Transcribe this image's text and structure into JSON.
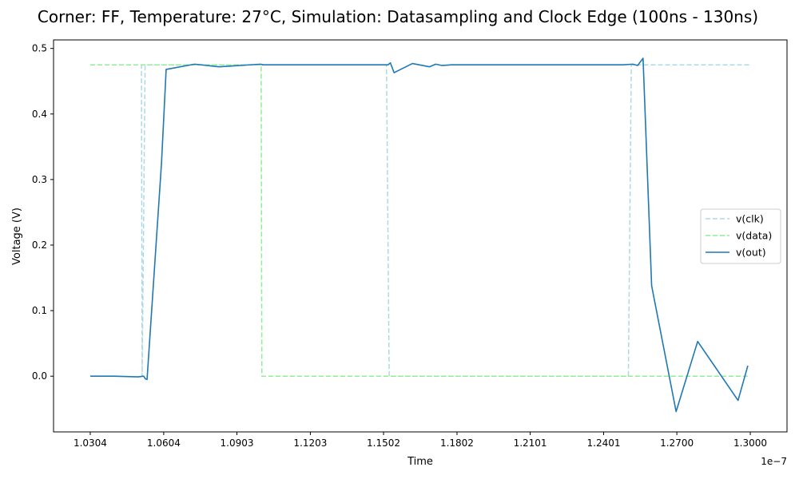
{
  "chart_data": {
    "type": "line",
    "title": "Corner: FF, Temperature: 27°C, Simulation: Datasampling and Clock Edge (100ns - 130ns)",
    "xlabel": "Time",
    "ylabel": "Voltage (V)",
    "x_offset_label": "1e−7",
    "xlim": [
      1.0154,
      1.315
    ],
    "ylim": [
      -0.085,
      0.513
    ],
    "grid": false,
    "legend_position": "center-right",
    "x_ticks": [
      {
        "value": 1.0304,
        "label": "1.0304"
      },
      {
        "value": 1.0604,
        "label": "1.0604"
      },
      {
        "value": 1.0903,
        "label": "1.0903"
      },
      {
        "value": 1.1203,
        "label": "1.1203"
      },
      {
        "value": 1.1502,
        "label": "1.1502"
      },
      {
        "value": 1.1802,
        "label": "1.1802"
      },
      {
        "value": 1.2101,
        "label": "1.2101"
      },
      {
        "value": 1.2401,
        "label": "1.2401"
      },
      {
        "value": 1.27,
        "label": "1.2700"
      },
      {
        "value": 1.3,
        "label": "1.3000"
      }
    ],
    "y_ticks": [
      {
        "value": 0.0,
        "label": "0.0"
      },
      {
        "value": 0.1,
        "label": "0.1"
      },
      {
        "value": 0.2,
        "label": "0.2"
      },
      {
        "value": 0.3,
        "label": "0.3"
      },
      {
        "value": 0.4,
        "label": "0.4"
      },
      {
        "value": 0.5,
        "label": "0.5"
      }
    ],
    "series": [
      {
        "name": "v(clk)",
        "color": "#add8e6",
        "dash": "dashed",
        "x": [
          1.0304,
          1.0513,
          1.0516,
          1.0528,
          1.1514,
          1.1525,
          1.2502,
          1.2514,
          1.3
        ],
        "y": [
          0.475,
          0.475,
          0.0,
          0.475,
          0.475,
          0.0,
          0.0,
          0.475,
          0.475
        ]
      },
      {
        "name": "v(data)",
        "color": "#90ee90",
        "dash": "dashed",
        "x": [
          1.0304,
          1.1002,
          1.1005,
          1.3
        ],
        "y": [
          0.475,
          0.475,
          0.0,
          0.0
        ]
      },
      {
        "name": "v(out)",
        "color": "#1f77b4",
        "dash": "solid",
        "x": [
          1.0304,
          1.04,
          1.05,
          1.0522,
          1.0529,
          1.0536,
          1.0595,
          1.0614,
          1.073,
          1.083,
          1.1,
          1.101,
          1.12,
          1.14,
          1.152,
          1.153,
          1.1545,
          1.162,
          1.169,
          1.1715,
          1.174,
          1.178,
          1.19,
          1.21,
          1.23,
          1.248,
          1.252,
          1.254,
          1.2562,
          1.2597,
          1.2697,
          1.2785,
          1.295,
          1.299
        ],
        "y": [
          0.0,
          0.0,
          -0.001,
          0.0,
          -0.004,
          -0.005,
          0.325,
          0.468,
          0.476,
          0.472,
          0.476,
          0.475,
          0.475,
          0.475,
          0.475,
          0.478,
          0.463,
          0.477,
          0.472,
          0.476,
          0.474,
          0.475,
          0.475,
          0.475,
          0.475,
          0.475,
          0.476,
          0.474,
          0.485,
          0.138,
          -0.054,
          0.053,
          -0.037,
          0.016
        ]
      }
    ]
  }
}
